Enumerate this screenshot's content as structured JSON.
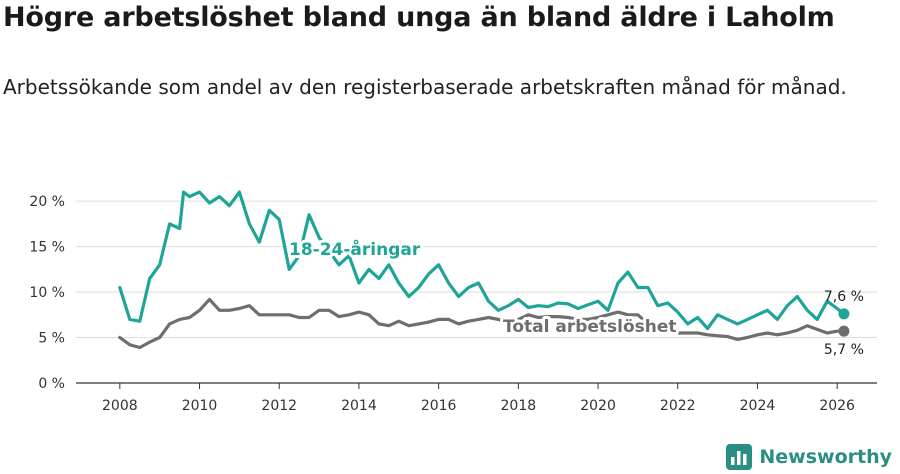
{
  "title": "Högre arbetslöshet bland unga än bland äldre i Laholm",
  "subtitle": "Arbetssökande som andel av den registerbaserade arbetskraften månad för månad.",
  "brand": {
    "name": "Newsworthy",
    "icon": "bar-chart-logo-icon"
  },
  "colors": {
    "youth": "#1fa596",
    "total": "#6e6e6e",
    "grid": "#dddddd",
    "axis": "#333333"
  },
  "chart_data": {
    "type": "line",
    "title": "Högre arbetslöshet bland unga än bland äldre i Laholm",
    "xlabel": "",
    "ylabel": "",
    "ylim": [
      0,
      22
    ],
    "xlim": [
      2006.9,
      2027.0
    ],
    "y_ticks": [
      0,
      5,
      10,
      15,
      20
    ],
    "y_tick_labels": [
      "0 %",
      "5 %",
      "10 %",
      "15 %",
      "20 %"
    ],
    "x_ticks": [
      2008,
      2010,
      2012,
      2014,
      2016,
      2018,
      2020,
      2022,
      2024,
      2026
    ],
    "x_tick_labels": [
      "2008",
      "2010",
      "2012",
      "2014",
      "2016",
      "2018",
      "2020",
      "2022",
      "2024",
      "2026"
    ],
    "grid": true,
    "series": [
      {
        "name": "18-24-åringar",
        "label": "18-24-åringar",
        "x": [
          2008.0,
          2008.25,
          2008.5,
          2008.75,
          2009.0,
          2009.25,
          2009.5,
          2009.6,
          2009.75,
          2010.0,
          2010.25,
          2010.5,
          2010.75,
          2011.0,
          2011.25,
          2011.5,
          2011.75,
          2012.0,
          2012.25,
          2012.5,
          2012.75,
          2013.0,
          2013.25,
          2013.5,
          2013.75,
          2014.0,
          2014.25,
          2014.5,
          2014.75,
          2015.0,
          2015.25,
          2015.5,
          2015.75,
          2016.0,
          2016.25,
          2016.5,
          2016.75,
          2017.0,
          2017.25,
          2017.5,
          2017.75,
          2018.0,
          2018.25,
          2018.5,
          2018.75,
          2019.0,
          2019.25,
          2019.5,
          2019.75,
          2020.0,
          2020.25,
          2020.5,
          2020.75,
          2021.0,
          2021.25,
          2021.5,
          2021.75,
          2022.0,
          2022.25,
          2022.5,
          2022.75,
          2023.0,
          2023.25,
          2023.5,
          2023.75,
          2024.0,
          2024.25,
          2024.5,
          2024.75,
          2025.0,
          2025.25,
          2025.5,
          2025.75,
          2026.0,
          2026.17
        ],
        "values": [
          10.5,
          7.0,
          6.8,
          11.5,
          13.0,
          17.5,
          17.0,
          21.0,
          20.5,
          21.0,
          19.8,
          20.5,
          19.5,
          21.0,
          17.5,
          15.5,
          19.0,
          18.0,
          12.5,
          14.0,
          18.5,
          16.0,
          14.5,
          13.0,
          14.0,
          11.0,
          12.5,
          11.5,
          13.0,
          11.0,
          9.5,
          10.5,
          12.0,
          13.0,
          11.0,
          9.5,
          10.5,
          11.0,
          9.0,
          8.0,
          8.5,
          9.2,
          8.3,
          8.5,
          8.4,
          8.8,
          8.7,
          8.2,
          8.6,
          9.0,
          8.0,
          11.0,
          12.2,
          10.5,
          10.5,
          8.5,
          8.8,
          7.8,
          6.5,
          7.2,
          6.0,
          7.5,
          7.0,
          6.5,
          7.0,
          7.5,
          8.0,
          7.0,
          8.5,
          9.5,
          8.0,
          7.0,
          9.0,
          8.2,
          7.6
        ],
        "end_label": "7,6 %"
      },
      {
        "name": "Total arbetslöshet",
        "label": "Total arbetslöshet",
        "x": [
          2008.0,
          2008.25,
          2008.5,
          2008.75,
          2009.0,
          2009.25,
          2009.5,
          2009.75,
          2010.0,
          2010.25,
          2010.5,
          2010.75,
          2011.0,
          2011.25,
          2011.5,
          2011.75,
          2012.0,
          2012.25,
          2012.5,
          2012.75,
          2013.0,
          2013.25,
          2013.5,
          2013.75,
          2014.0,
          2014.25,
          2014.5,
          2014.75,
          2015.0,
          2015.25,
          2015.5,
          2015.75,
          2016.0,
          2016.25,
          2016.5,
          2016.75,
          2017.0,
          2017.25,
          2017.5,
          2017.75,
          2018.0,
          2018.25,
          2018.5,
          2018.75,
          2019.0,
          2019.25,
          2019.5,
          2019.75,
          2020.0,
          2020.25,
          2020.5,
          2020.75,
          2021.0,
          2021.25,
          2021.5,
          2021.75,
          2022.0,
          2022.25,
          2022.5,
          2022.75,
          2023.0,
          2023.25,
          2023.5,
          2023.75,
          2024.0,
          2024.25,
          2024.5,
          2024.75,
          2025.0,
          2025.25,
          2025.5,
          2025.75,
          2026.0,
          2026.17
        ],
        "values": [
          5.0,
          4.2,
          3.9,
          4.5,
          5.0,
          6.5,
          7.0,
          7.2,
          8.0,
          9.2,
          8.0,
          8.0,
          8.2,
          8.5,
          7.5,
          7.5,
          7.5,
          7.5,
          7.2,
          7.2,
          8.0,
          8.0,
          7.3,
          7.5,
          7.8,
          7.5,
          6.5,
          6.3,
          6.8,
          6.3,
          6.5,
          6.7,
          7.0,
          7.0,
          6.5,
          6.8,
          7.0,
          7.2,
          7.0,
          6.6,
          7.0,
          7.5,
          7.2,
          7.3,
          7.3,
          7.2,
          7.0,
          7.0,
          7.2,
          7.5,
          7.8,
          7.5,
          7.5,
          6.5,
          6.2,
          6.0,
          5.5,
          5.5,
          5.5,
          5.3,
          5.2,
          5.1,
          4.8,
          5.0,
          5.3,
          5.5,
          5.3,
          5.5,
          5.8,
          6.3,
          5.9,
          5.5,
          5.7,
          5.7
        ],
        "end_label": "5,7 %"
      }
    ]
  }
}
